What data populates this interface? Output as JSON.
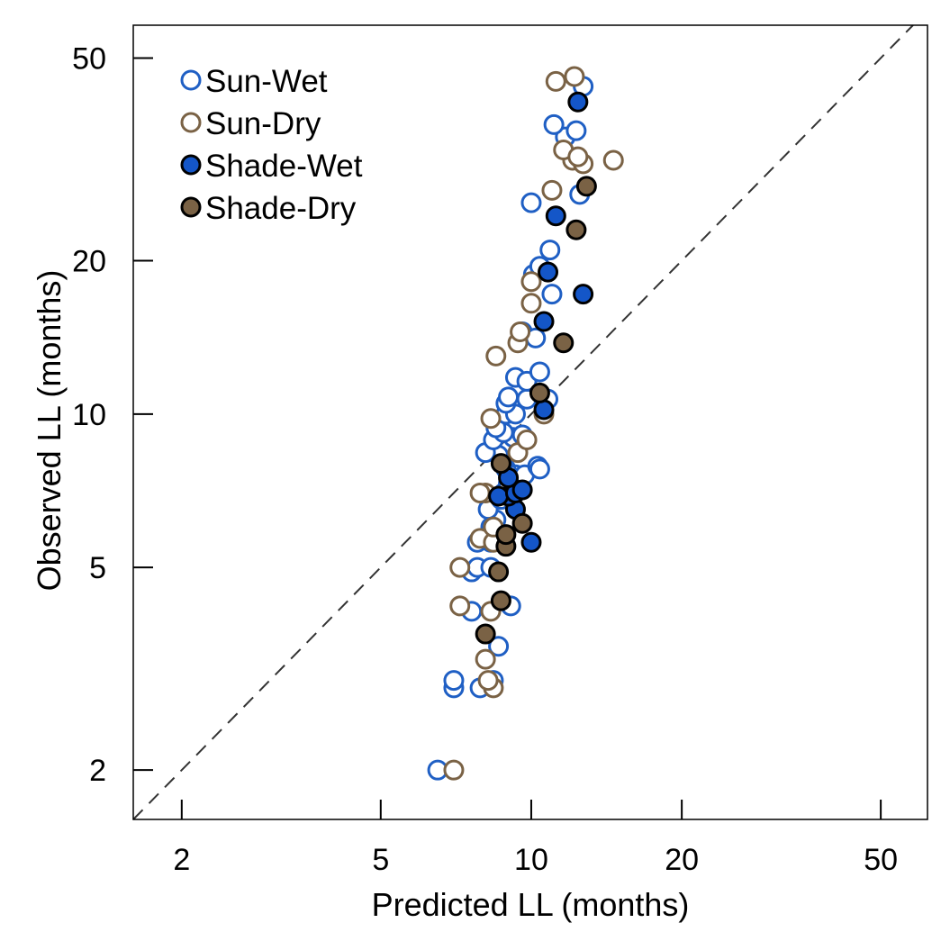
{
  "chart_data": {
    "type": "scatter",
    "xlabel": "Predicted LL (months)",
    "ylabel": "Observed LL (months)",
    "x_scale": "log",
    "y_scale": "log",
    "xlim": [
      1.6,
      62
    ],
    "ylim": [
      1.6,
      58
    ],
    "x_ticks": [
      2,
      5,
      10,
      20,
      50
    ],
    "y_ticks": [
      2,
      5,
      10,
      20,
      50
    ],
    "x_tick_labels": [
      "2",
      "5",
      "10",
      "20",
      "50"
    ],
    "y_tick_labels": [
      "2",
      "5",
      "10",
      "20",
      "50"
    ],
    "reference_line": "1:1 dashed",
    "grid": false,
    "legend_position": "top-left",
    "series": [
      {
        "name": "Sun-Wet",
        "marker": "open-circle",
        "color": "#1f5fc4",
        "points": [
          [
            6.5,
            2
          ],
          [
            7.0,
            2.9
          ],
          [
            7.0,
            3
          ],
          [
            7.9,
            2.9
          ],
          [
            8.4,
            3
          ],
          [
            8.6,
            3.5
          ],
          [
            7.6,
            4.1
          ],
          [
            9.1,
            4.2
          ],
          [
            7.6,
            4.9
          ],
          [
            7.8,
            5
          ],
          [
            8.3,
            5
          ],
          [
            7.8,
            5.6
          ],
          [
            8.3,
            5.6
          ],
          [
            8.5,
            5.8
          ],
          [
            8.3,
            6
          ],
          [
            8.5,
            6.2
          ],
          [
            8.2,
            6.5
          ],
          [
            8.7,
            6.8
          ],
          [
            8.8,
            7
          ],
          [
            9.0,
            7.3
          ],
          [
            9.3,
            7.6
          ],
          [
            9.0,
            7.6
          ],
          [
            8.9,
            7.8
          ],
          [
            9.7,
            7.6
          ],
          [
            10.3,
            7.9
          ],
          [
            10.4,
            7.8
          ],
          [
            8.8,
            8
          ],
          [
            8.6,
            8.3
          ],
          [
            8.1,
            8.4
          ],
          [
            8.4,
            8.9
          ],
          [
            9.2,
            9
          ],
          [
            8.8,
            9.2
          ],
          [
            9.6,
            9.1
          ],
          [
            8.5,
            9.4
          ],
          [
            8.9,
            10
          ],
          [
            9.3,
            10
          ],
          [
            8.9,
            10.5
          ],
          [
            9.0,
            10.8
          ],
          [
            9.8,
            10.7
          ],
          [
            10.8,
            10.7
          ],
          [
            9.3,
            11.8
          ],
          [
            9.8,
            11.6
          ],
          [
            10.4,
            12.1
          ],
          [
            9.6,
            14.5
          ],
          [
            10.2,
            14.1
          ],
          [
            11.0,
            17.2
          ],
          [
            10.1,
            18.8
          ],
          [
            10.4,
            19.5
          ],
          [
            10.9,
            21
          ],
          [
            10.0,
            26
          ],
          [
            12.5,
            27
          ],
          [
            11.7,
            35
          ],
          [
            12.3,
            36
          ],
          [
            11.1,
            37
          ],
          [
            12.7,
            44
          ]
        ]
      },
      {
        "name": "Sun-Dry",
        "marker": "open-circle",
        "color": "#7a6245",
        "points": [
          [
            7.0,
            2
          ],
          [
            8.4,
            2.9
          ],
          [
            8.2,
            3
          ],
          [
            8.1,
            3.3
          ],
          [
            7.2,
            4.2
          ],
          [
            8.3,
            4.1
          ],
          [
            7.2,
            5
          ],
          [
            7.9,
            5.7
          ],
          [
            8.4,
            5.6
          ],
          [
            8.4,
            6
          ],
          [
            8.1,
            7
          ],
          [
            7.9,
            7
          ],
          [
            9.4,
            8.4
          ],
          [
            9.8,
            8.9
          ],
          [
            8.3,
            9.8
          ],
          [
            10.6,
            10
          ],
          [
            8.5,
            13
          ],
          [
            9.4,
            13.8
          ],
          [
            9.5,
            14.5
          ],
          [
            10.0,
            16.5
          ],
          [
            10.0,
            18.2
          ],
          [
            11.0,
            27.5
          ],
          [
            12.1,
            31.5
          ],
          [
            12.7,
            31
          ],
          [
            14.6,
            31.5
          ],
          [
            11.6,
            33
          ],
          [
            12.4,
            32
          ],
          [
            11.2,
            45
          ],
          [
            12.2,
            46
          ]
        ]
      },
      {
        "name": "Shade-Wet",
        "marker": "filled-circle",
        "color": "#1456c8",
        "points": [
          [
            10.0,
            5.6
          ],
          [
            9.3,
            6.5
          ],
          [
            9.0,
            6.9
          ],
          [
            8.6,
            6.9
          ],
          [
            9.3,
            7
          ],
          [
            9.6,
            7.1
          ],
          [
            9.0,
            7.5
          ],
          [
            10.6,
            10.2
          ],
          [
            10.6,
            15.2
          ],
          [
            10.8,
            19
          ],
          [
            11.2,
            24.5
          ],
          [
            12.7,
            17.2
          ],
          [
            12.4,
            41
          ]
        ]
      },
      {
        "name": "Shade-Dry",
        "marker": "filled-circle",
        "color": "#7a6245",
        "points": [
          [
            8.1,
            3.7
          ],
          [
            8.7,
            4.3
          ],
          [
            8.6,
            4.9
          ],
          [
            8.9,
            5.5
          ],
          [
            8.9,
            5.8
          ],
          [
            9.6,
            6.1
          ],
          [
            10.4,
            11
          ],
          [
            8.7,
            8
          ],
          [
            11.6,
            13.8
          ],
          [
            12.3,
            23
          ],
          [
            12.9,
            28
          ]
        ]
      }
    ]
  }
}
